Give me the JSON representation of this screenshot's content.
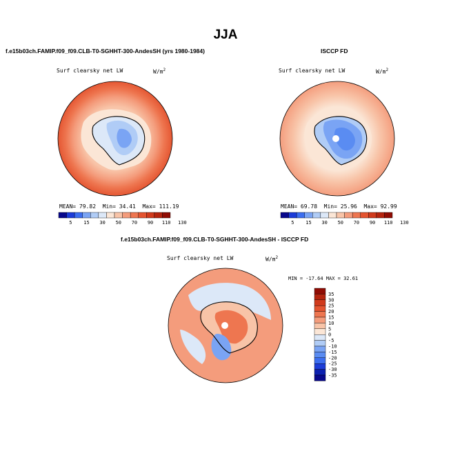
{
  "title": "JJA",
  "panel_left": {
    "heading": "f.e15b03ch.FAMIP.f09_f09.CLB-T0-SGHHT-300-AndesSH (yrs 1980-1984)",
    "variable": "Surf clearsky net LW",
    "units": "W/m",
    "units_exp": "2",
    "stats": {
      "mean_label": "MEAN=",
      "mean": "79.82",
      "min_label": "Min=",
      "min": "34.41",
      "max_label": "Max=",
      "max": "111.19"
    }
  },
  "panel_right": {
    "heading": "ISCCP FD",
    "variable": "Surf clearsky net LW",
    "units": "W/m",
    "units_exp": "2",
    "stats": {
      "mean_label": "MEAN=",
      "mean": "69.78",
      "min_label": "Min=",
      "min": "25.96",
      "max_label": "Max=",
      "max": "92.99"
    }
  },
  "panel_diff": {
    "heading": "f.e15b03ch.FAMIP.f09_f09.CLB-T0-SGHHT-300-AndesSH - ISCCP FD",
    "variable": "Surf clearsky net LW",
    "units": "W/m",
    "units_exp": "2",
    "minmax": "MIN = -17.64  MAX =  32.61"
  },
  "colorbar_abs": {
    "labels": [
      "5",
      "15",
      "30",
      "50",
      "70",
      "90",
      "110",
      "130"
    ],
    "colors": [
      "#08088c",
      "#1c3cd8",
      "#3c6ef0",
      "#7aa4f4",
      "#b0ccf6",
      "#dce8f8",
      "#fbe6d6",
      "#f8c4a8",
      "#f49c7c",
      "#ee7650",
      "#e45430",
      "#d03a1c",
      "#b4240e",
      "#900c04"
    ]
  },
  "colorbar_diff": {
    "labels": [
      "35",
      "30",
      "25",
      "20",
      "15",
      "10",
      "5",
      "0",
      "-5",
      "-10",
      "-15",
      "-20",
      "-25",
      "-30",
      "-35"
    ],
    "colors": [
      "#900c04",
      "#b4240e",
      "#d03a1c",
      "#e45430",
      "#ee7650",
      "#f49c7c",
      "#f8c4a8",
      "#fbe6d6",
      "#dce8f8",
      "#b0ccf6",
      "#7aa4f4",
      "#5a8cf2",
      "#3c6ef0",
      "#1c3cd8",
      "#0c20b0",
      "#08088c"
    ]
  }
}
